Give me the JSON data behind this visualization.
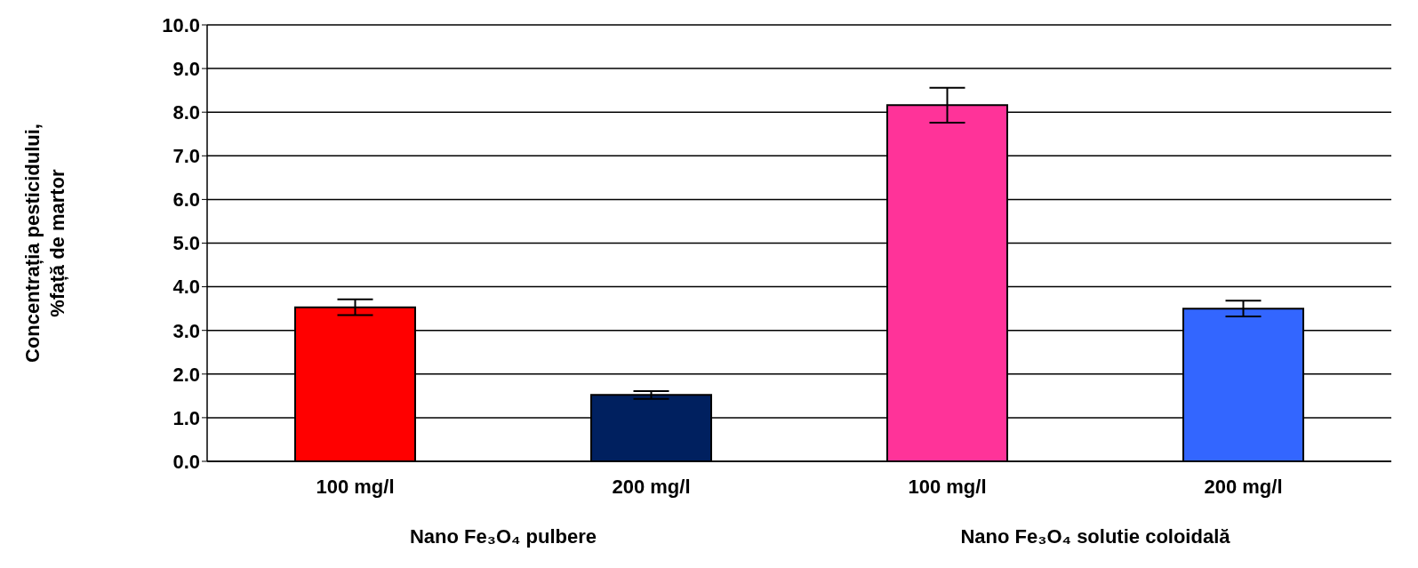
{
  "chart_data": {
    "type": "bar",
    "ylabel": "Concentrația pesticidului, %față de martor",
    "categories": [
      "100 mg/l",
      "200 mg/l",
      "100 mg/l",
      "200 mg/l"
    ],
    "values": [
      3.53,
      1.52,
      8.16,
      3.5
    ],
    "colors": [
      "#ff0000",
      "#00205f",
      "#ff3399",
      "#3366ff"
    ],
    "errors": [
      0.18,
      0.09,
      0.4,
      0.18
    ],
    "ylim": [
      0,
      10
    ],
    "yticks": [
      {
        "value": 0,
        "label": "0.0"
      },
      {
        "value": 1,
        "label": "1.0"
      },
      {
        "value": 2,
        "label": "2.0"
      },
      {
        "value": 3,
        "label": "3.0"
      },
      {
        "value": 4,
        "label": "4.0"
      },
      {
        "value": 5,
        "label": "5.0"
      },
      {
        "value": 6,
        "label": "6.0"
      },
      {
        "value": 7,
        "label": "7.0"
      },
      {
        "value": 8,
        "label": "8.0"
      },
      {
        "value": 9,
        "label": "9.0"
      },
      {
        "value": 10,
        "label": "10.0"
      }
    ],
    "grid": "y",
    "legend": false,
    "annotations": [
      "Nano Fe₃O₄ pulbere",
      "Nano Fe₃O₄ solutie coloidală"
    ]
  }
}
